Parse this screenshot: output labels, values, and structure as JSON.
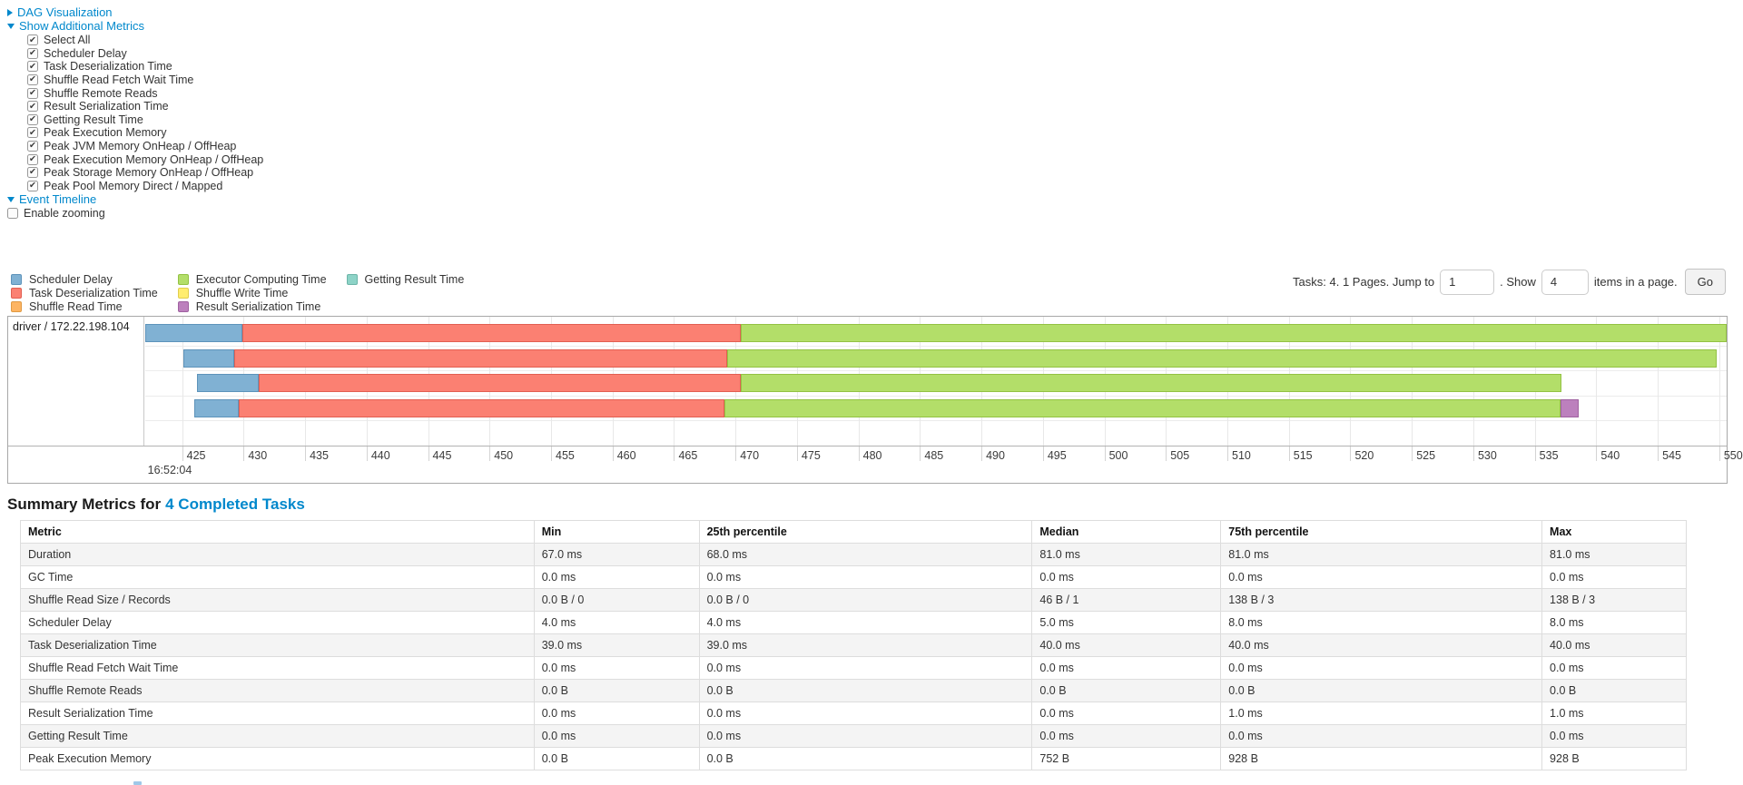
{
  "sections": {
    "dag_label": "DAG Visualization",
    "metrics_label": "Show Additional Metrics",
    "timeline_label": "Event Timeline"
  },
  "metrics": {
    "items": [
      "Select All",
      "Scheduler Delay",
      "Task Deserialization Time",
      "Shuffle Read Fetch Wait Time",
      "Shuffle Remote Reads",
      "Result Serialization Time",
      "Getting Result Time",
      "Peak Execution Memory",
      "Peak JVM Memory OnHeap / OffHeap",
      "Peak Execution Memory OnHeap / OffHeap",
      "Peak Storage Memory OnHeap / OffHeap",
      "Peak Pool Memory Direct / Mapped"
    ]
  },
  "enable_zooming_label": "Enable zooming",
  "legend": {
    "items": [
      {
        "key": "scheduler_delay",
        "label": "Scheduler Delay",
        "color": "#80B1D3",
        "border": "#5d93ba"
      },
      {
        "key": "task_deserialization",
        "label": "Task Deserialization Time",
        "color": "#FB8072",
        "border": "#e25f52"
      },
      {
        "key": "shuffle_read",
        "label": "Shuffle Read Time",
        "color": "#FDB462",
        "border": "#e09a44"
      },
      {
        "key": "executor_computing",
        "label": "Executor Computing Time",
        "color": "#B3DE69",
        "border": "#93c243"
      },
      {
        "key": "shuffle_write",
        "label": "Shuffle Write Time",
        "color": "#FFED6F",
        "border": "#e0cd4e"
      },
      {
        "key": "result_serialization",
        "label": "Result Serialization Time",
        "color": "#BC80BD",
        "border": "#9f61a0"
      },
      {
        "key": "getting_result",
        "label": "Getting Result Time",
        "color": "#8DD3C7",
        "border": "#6cb5a8"
      }
    ]
  },
  "pagination": {
    "prefix": "Tasks: 4. 1 Pages. Jump to",
    "jump_value": "1",
    "mid": ". Show",
    "show_value": "4",
    "suffix": "items in a page.",
    "go_label": "Go"
  },
  "timeline": {
    "row_label": "driver / 172.22.198.104",
    "t_min": 422,
    "t_max": 550.6,
    "tick_start": 425,
    "tick_end": 550,
    "tick_step": 5,
    "first_tick_time": "16:52:04",
    "tasks": [
      [
        {
          "k": "scheduler_delay",
          "s": 422.0,
          "e": 429.9
        },
        {
          "k": "task_deserialization",
          "s": 429.9,
          "e": 470.4
        },
        {
          "k": "executor_computing",
          "s": 470.4,
          "e": 550.6
        }
      ],
      [
        {
          "k": "scheduler_delay",
          "s": 425.1,
          "e": 429.2
        },
        {
          "k": "task_deserialization",
          "s": 429.2,
          "e": 469.3
        },
        {
          "k": "executor_computing",
          "s": 469.3,
          "e": 549.8
        }
      ],
      [
        {
          "k": "scheduler_delay",
          "s": 426.2,
          "e": 431.2
        },
        {
          "k": "task_deserialization",
          "s": 431.2,
          "e": 470.4
        },
        {
          "k": "executor_computing",
          "s": 470.4,
          "e": 537.2
        }
      ],
      [
        {
          "k": "scheduler_delay",
          "s": 426.0,
          "e": 429.6
        },
        {
          "k": "task_deserialization",
          "s": 429.6,
          "e": 469.1
        },
        {
          "k": "executor_computing",
          "s": 469.1,
          "e": 537.1
        },
        {
          "k": "result_serialization",
          "s": 537.1,
          "e": 538.6
        }
      ]
    ]
  },
  "summary": {
    "title_prefix": "Summary Metrics for",
    "title_link": "4 Completed Tasks",
    "columns": [
      "Metric",
      "Min",
      "25th percentile",
      "Median",
      "75th percentile",
      "Max"
    ],
    "rows": [
      [
        "Duration",
        "67.0 ms",
        "68.0 ms",
        "81.0 ms",
        "81.0 ms",
        "81.0 ms"
      ],
      [
        "GC Time",
        "0.0 ms",
        "0.0 ms",
        "0.0 ms",
        "0.0 ms",
        "0.0 ms"
      ],
      [
        "Shuffle Read Size / Records",
        "0.0 B / 0",
        "0.0 B / 0",
        "46 B / 1",
        "138 B / 3",
        "138 B / 3"
      ],
      [
        "Scheduler Delay",
        "4.0 ms",
        "4.0 ms",
        "5.0 ms",
        "8.0 ms",
        "8.0 ms"
      ],
      [
        "Task Deserialization Time",
        "39.0 ms",
        "39.0 ms",
        "40.0 ms",
        "40.0 ms",
        "40.0 ms"
      ],
      [
        "Shuffle Read Fetch Wait Time",
        "0.0 ms",
        "0.0 ms",
        "0.0 ms",
        "0.0 ms",
        "0.0 ms"
      ],
      [
        "Shuffle Remote Reads",
        "0.0 B",
        "0.0 B",
        "0.0 B",
        "0.0 B",
        "0.0 B"
      ],
      [
        "Result Serialization Time",
        "0.0 ms",
        "0.0 ms",
        "0.0 ms",
        "1.0 ms",
        "1.0 ms"
      ],
      [
        "Getting Result Time",
        "0.0 ms",
        "0.0 ms",
        "0.0 ms",
        "0.0 ms",
        "0.0 ms"
      ],
      [
        "Peak Execution Memory",
        "0.0 B",
        "0.0 B",
        "752 B",
        "928 B",
        "928 B"
      ]
    ]
  }
}
